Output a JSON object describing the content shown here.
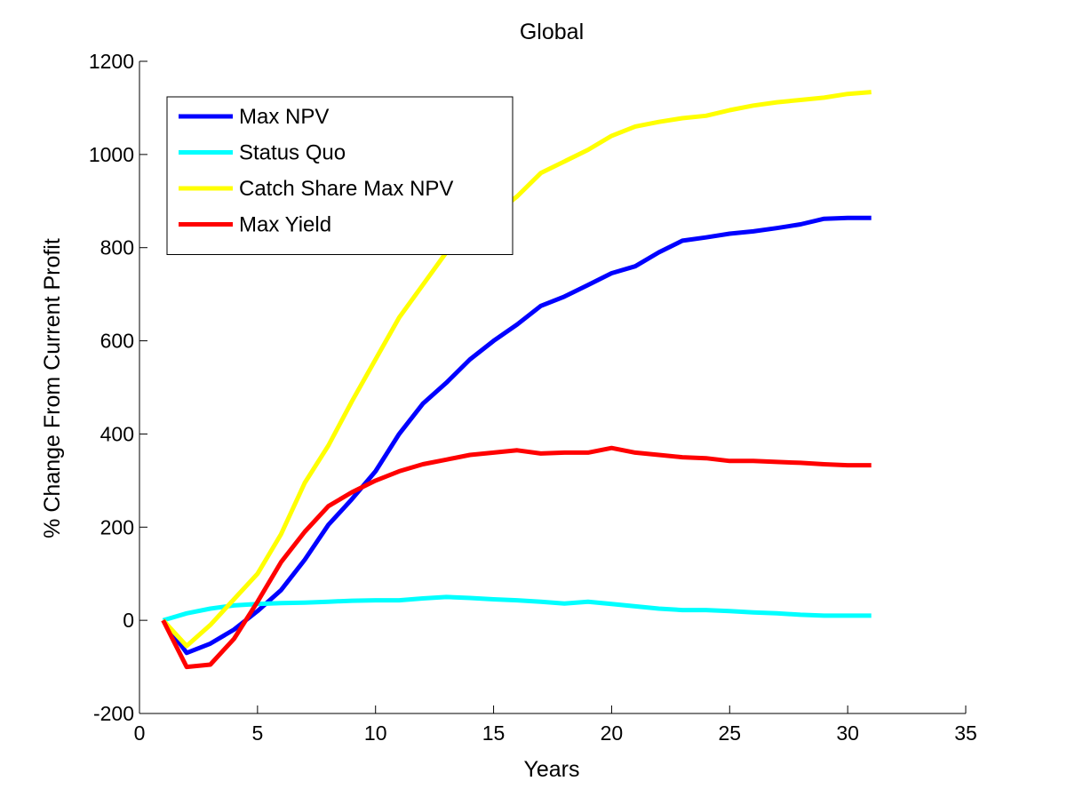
{
  "chart_data": {
    "type": "line",
    "title": "Global",
    "xlabel": "Years",
    "ylabel": "% Change From Current Profit",
    "xlim": [
      0,
      35
    ],
    "ylim": [
      -200,
      1200
    ],
    "xticks": [
      0,
      5,
      10,
      15,
      20,
      25,
      30,
      35
    ],
    "yticks": [
      -200,
      0,
      200,
      400,
      600,
      800,
      1000,
      1200
    ],
    "xtick_labels": [
      "0",
      "5",
      "10",
      "15",
      "20",
      "25",
      "30",
      "35"
    ],
    "ytick_labels": [
      "-200",
      "0",
      "200",
      "400",
      "600",
      "800",
      "1000",
      "1200"
    ],
    "grid": false,
    "legend_position": "top-left",
    "x": [
      1,
      2,
      3,
      4,
      5,
      6,
      7,
      8,
      9,
      10,
      11,
      12,
      13,
      14,
      15,
      16,
      17,
      18,
      19,
      20,
      21,
      22,
      23,
      24,
      25,
      26,
      27,
      28,
      29,
      30,
      31
    ],
    "series": [
      {
        "name": "Max NPV",
        "color": "#0000ff",
        "values": [
          0,
          -70,
          -50,
          -20,
          20,
          65,
          130,
          205,
          260,
          320,
          400,
          465,
          510,
          560,
          600,
          635,
          675,
          695,
          720,
          745,
          760,
          790,
          815,
          822,
          830,
          835,
          842,
          850,
          862,
          864,
          864
        ]
      },
      {
        "name": "Status Quo",
        "color": "#00ffff",
        "values": [
          0,
          15,
          25,
          32,
          35,
          37,
          38,
          40,
          42,
          43,
          43,
          47,
          50,
          48,
          45,
          43,
          40,
          36,
          40,
          35,
          30,
          25,
          22,
          22,
          20,
          17,
          15,
          12,
          10,
          10,
          10
        ]
      },
      {
        "name": "Catch Share Max NPV",
        "color": "#ffff00",
        "values": [
          0,
          -55,
          -10,
          45,
          100,
          185,
          295,
          375,
          470,
          560,
          650,
          720,
          790,
          830,
          870,
          910,
          960,
          985,
          1010,
          1040,
          1060,
          1070,
          1078,
          1083,
          1095,
          1105,
          1112,
          1117,
          1122,
          1130,
          1134
        ]
      },
      {
        "name": "Max Yield",
        "color": "#ff0000",
        "values": [
          0,
          -100,
          -95,
          -40,
          40,
          125,
          190,
          245,
          275,
          300,
          320,
          335,
          345,
          355,
          360,
          365,
          358,
          360,
          360,
          370,
          360,
          355,
          350,
          348,
          342,
          342,
          340,
          338,
          335,
          333,
          333
        ]
      }
    ]
  }
}
